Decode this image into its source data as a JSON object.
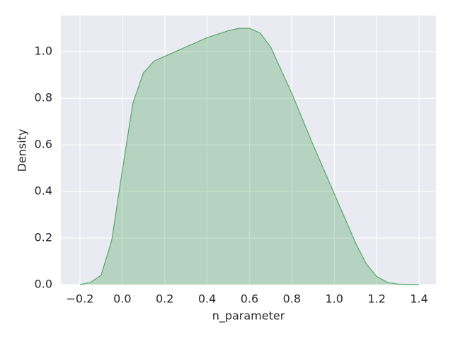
{
  "chart_data": {
    "type": "kde",
    "xlabel": "n_parameter",
    "ylabel": "Density",
    "x": [
      -0.2,
      -0.15,
      -0.1,
      -0.05,
      0.0,
      0.05,
      0.1,
      0.15,
      0.2,
      0.3,
      0.4,
      0.5,
      0.55,
      0.6,
      0.65,
      0.7,
      0.8,
      0.9,
      1.0,
      1.1,
      1.15,
      1.2,
      1.25,
      1.3,
      1.4
    ],
    "series": [
      {
        "color": "#55a868",
        "values": [
          0,
          0.01,
          0.04,
          0.19,
          0.49,
          0.78,
          0.91,
          0.96,
          0.98,
          1.02,
          1.06,
          1.09,
          1.1,
          1.1,
          1.08,
          1.02,
          0.82,
          0.6,
          0.39,
          0.18,
          0.09,
          0.035,
          0.01,
          0.002,
          0
        ]
      }
    ],
    "xlim": [
      -0.29,
      1.48
    ],
    "ylim": [
      0,
      1.155
    ],
    "xticks": [
      {
        "value": -0.2,
        "label": "−0.2"
      },
      {
        "value": 0,
        "label": "0.0"
      },
      0.2,
      0.4,
      0.6,
      0.8,
      {
        "value": 1,
        "label": "1.0"
      },
      1.2,
      1.4
    ],
    "yticks": [
      {
        "value": 0,
        "label": "0.0"
      },
      0.2,
      0.4,
      0.6,
      0.8,
      {
        "value": 1,
        "label": "1.0"
      }
    ],
    "grid": true
  }
}
